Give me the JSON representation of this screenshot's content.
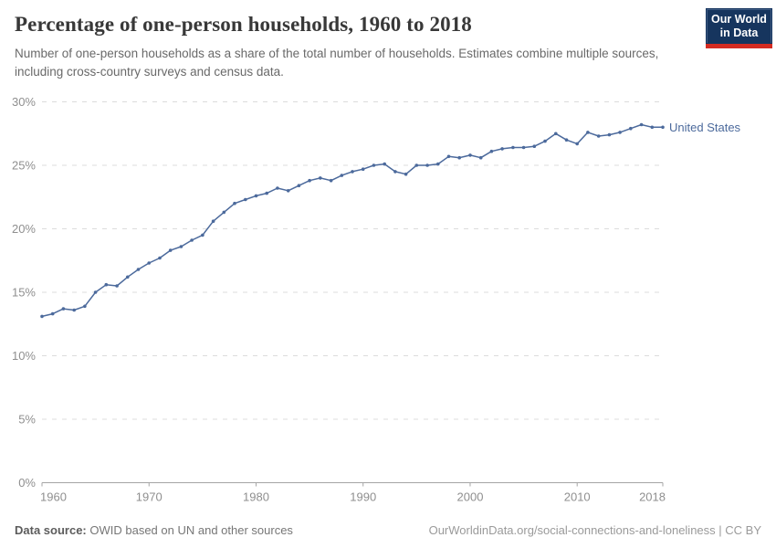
{
  "header": {
    "title": "Percentage of one-person households, 1960 to 2018",
    "subtitle": "Number of one-person households as a share of the total number of households. Estimates combine multiple sources, including cross-country surveys and census data."
  },
  "logo": {
    "line1": "Our World",
    "line2": "in Data"
  },
  "chart_data": {
    "type": "line",
    "title": "Percentage of one-person households, 1960 to 2018",
    "xlabel": "",
    "ylabel": "",
    "xlim": [
      1960,
      2018
    ],
    "ylim": [
      0,
      30
    ],
    "x_ticks": [
      1960,
      1970,
      1980,
      1990,
      2000,
      2010,
      2018
    ],
    "y_ticks": [
      0,
      5,
      10,
      15,
      20,
      25,
      30
    ],
    "y_tick_suffix": "%",
    "grid": "horizontal-dashed",
    "legend_position": "right-of-line-end",
    "series": [
      {
        "name": "United States",
        "color": "#4C6A9C",
        "years": [
          1960,
          1961,
          1962,
          1963,
          1964,
          1965,
          1966,
          1967,
          1968,
          1969,
          1970,
          1971,
          1972,
          1973,
          1974,
          1975,
          1976,
          1977,
          1978,
          1979,
          1980,
          1981,
          1982,
          1983,
          1984,
          1985,
          1986,
          1987,
          1988,
          1989,
          1990,
          1991,
          1992,
          1993,
          1994,
          1995,
          1996,
          1997,
          1998,
          1999,
          2000,
          2001,
          2002,
          2003,
          2004,
          2005,
          2006,
          2007,
          2008,
          2009,
          2010,
          2011,
          2012,
          2013,
          2014,
          2015,
          2016,
          2017,
          2018
        ],
        "values": [
          13.1,
          13.3,
          13.7,
          13.6,
          13.9,
          15.0,
          15.6,
          15.5,
          16.2,
          16.8,
          17.3,
          17.7,
          18.3,
          18.6,
          19.1,
          19.5,
          20.6,
          21.3,
          22.0,
          22.3,
          22.6,
          22.8,
          23.2,
          23.0,
          23.4,
          23.8,
          24.0,
          23.8,
          24.2,
          24.5,
          24.7,
          25.0,
          25.1,
          24.5,
          24.3,
          25.0,
          25.0,
          25.1,
          25.7,
          25.6,
          25.8,
          25.6,
          26.1,
          26.3,
          26.4,
          26.4,
          26.5,
          26.9,
          27.5,
          27.0,
          26.7,
          27.6,
          27.3,
          27.4,
          27.6,
          27.9,
          28.2,
          28.0,
          28.0
        ]
      }
    ]
  },
  "footer": {
    "source_label": "Data source:",
    "source_value": "OWID based on UN and other sources",
    "credit": "OurWorldinData.org/social-connections-and-loneliness | CC BY"
  },
  "colors": {
    "line": "#4C6A9C",
    "grid": "#dcdcdc",
    "axis": "#a5a5a5",
    "tick_text": "#8f8f8f",
    "title_text": "#383838",
    "subtitle_text": "#696969",
    "source_text": "#767676",
    "credit_text": "#9a9a9a",
    "logo_bg": "#16355E",
    "logo_stripe": "#D42B21"
  }
}
